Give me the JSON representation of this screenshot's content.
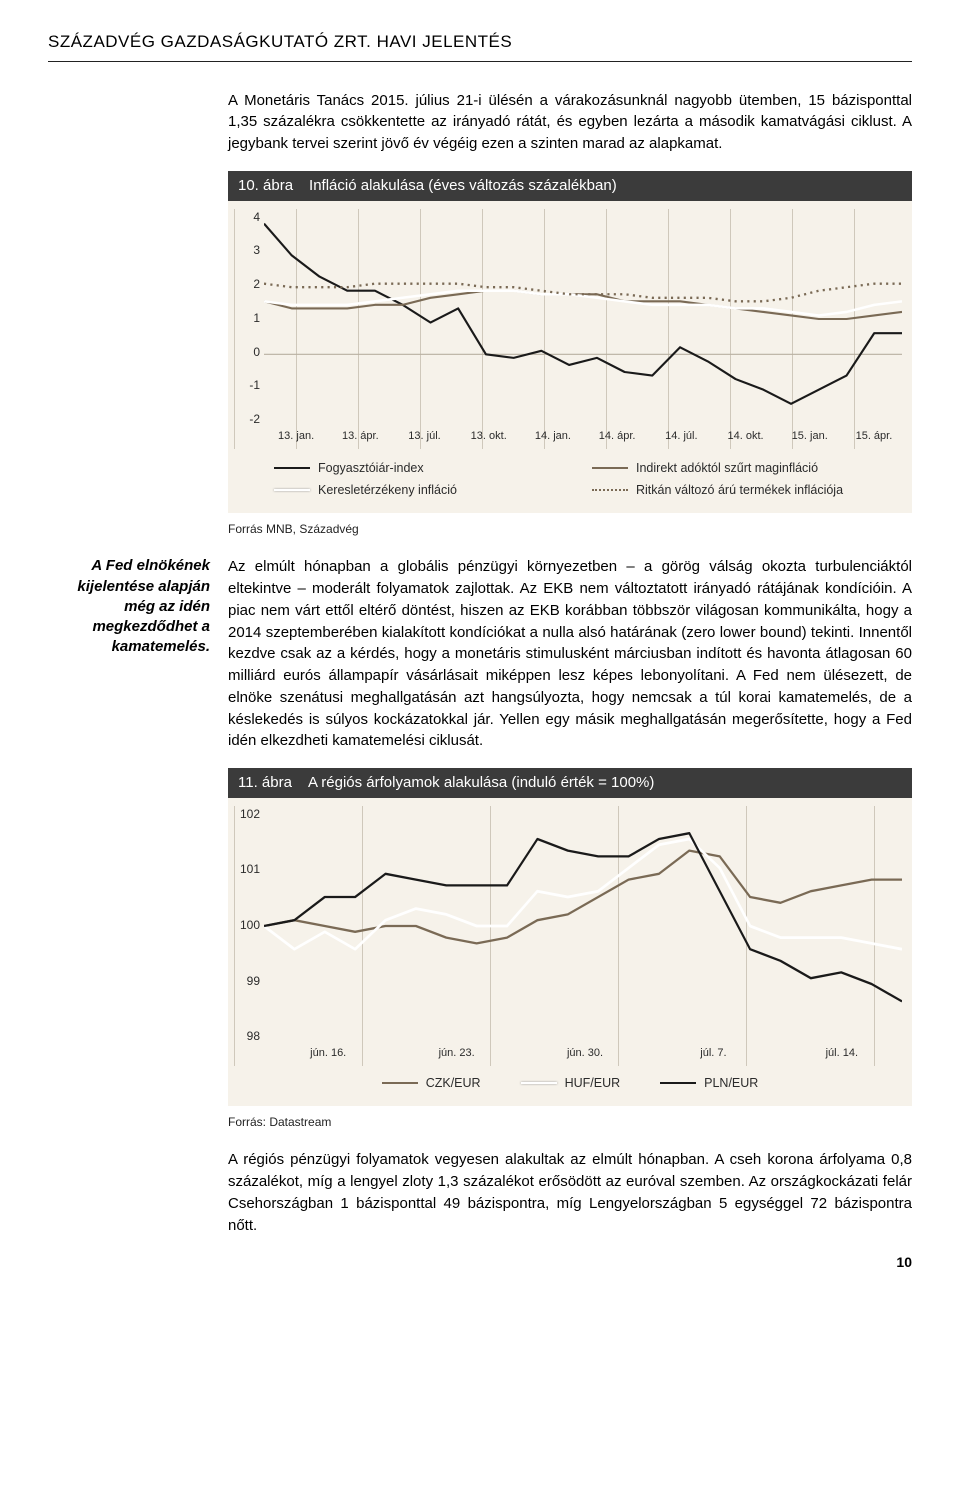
{
  "header": "SZÁZADVÉG GAZDASÁGKUTATÓ ZRT. HAVI JELENTÉS",
  "para1": "A Monetáris Tanács 2015. július 21-i ülésén a várakozásunknál nagyobb ütemben, 15 bázisponttal 1,35 százalékra csökkentette az irányadó rátát, és egyben lezárta a második kamatvágási ciklust. A jegybank tervei szerint jövő év végéig ezen a szinten marad az alapkamat.",
  "fig10": {
    "num": "10. ábra",
    "title": "Infláció alakulása (éves változás százalékban)",
    "source": "Forrás MNB, Századvég",
    "type": "line",
    "background_color": "#f6f2ea",
    "grid_color": "#cfc8bb",
    "ylim": [
      -2,
      4
    ],
    "yticks": [
      "4",
      "3",
      "2",
      "1",
      "0",
      "-1",
      "-2"
    ],
    "xticks": [
      "13. jan.",
      "13. ápr.",
      "13. júl.",
      "13. okt.",
      "14. jan.",
      "14. ápr.",
      "14. júl.",
      "14. okt.",
      "15. jan.",
      "15. ápr."
    ],
    "series": [
      {
        "name": "Fogyasztóiár-index",
        "color": "#1a1a1a",
        "style": "solid",
        "width": 2,
        "values": [
          3.7,
          2.8,
          2.2,
          1.8,
          1.8,
          1.4,
          0.9,
          1.3,
          0.0,
          -0.1,
          0.1,
          -0.3,
          -0.1,
          -0.5,
          -0.6,
          0.2,
          -0.2,
          -0.7,
          -1.0,
          -1.4,
          -1.0,
          -0.6,
          0.6,
          0.6
        ]
      },
      {
        "name": "Indirekt adóktól szűrt maginfláció",
        "color": "#7a6a55",
        "style": "solid",
        "width": 2,
        "values": [
          1.5,
          1.3,
          1.3,
          1.3,
          1.4,
          1.4,
          1.6,
          1.7,
          1.8,
          1.8,
          1.7,
          1.7,
          1.7,
          1.5,
          1.5,
          1.5,
          1.4,
          1.3,
          1.2,
          1.1,
          1.0,
          1.0,
          1.1,
          1.2
        ]
      },
      {
        "name": "Keresletérzékeny infláció",
        "color": "#ffffff",
        "style": "solid",
        "width": 2.4,
        "values": [
          1.5,
          1.4,
          1.4,
          1.4,
          1.5,
          1.6,
          1.7,
          1.8,
          1.8,
          1.8,
          1.7,
          1.7,
          1.6,
          1.5,
          1.4,
          1.4,
          1.4,
          1.3,
          1.3,
          1.2,
          1.1,
          1.2,
          1.4,
          1.5
        ]
      },
      {
        "name": "Ritkán változó árú termékek inflációja",
        "color": "#7a6a55",
        "style": "dotted",
        "width": 2.2,
        "values": [
          2.0,
          1.9,
          1.9,
          1.9,
          2.0,
          2.0,
          2.0,
          2.0,
          1.9,
          1.9,
          1.8,
          1.7,
          1.7,
          1.7,
          1.6,
          1.6,
          1.6,
          1.5,
          1.5,
          1.6,
          1.8,
          1.9,
          2.0,
          2.0
        ]
      }
    ]
  },
  "sidenote": "A Fed elnökének kijelentése alapján még az idén megkezdődhet a kamatemelés.",
  "para2": "Az elmúlt hónapban a globális pénzügyi környezetben – a görög válság okozta turbulenciáktól eltekintve – moderált folyamatok zajlottak. Az EKB nem változtatott irányadó rátájának kondícióin. A piac nem várt ettől eltérő döntést, hiszen az EKB korábban többször világosan kommunikálta, hogy a 2014 szeptemberében kialakított kondíciókat a nulla alsó határának (zero lower bound) tekinti. Innentől kezdve csak az a kérdés, hogy a monetáris stimulusként márciusban indított és havonta átlagosan 60 milliárd eurós állampapír vásárlásait miképpen lesz képes lebonyolítani. A Fed nem ülésezett, de elnöke szenátusi meghallgatásán azt hangsúlyozta, hogy nemcsak a túl korai kamatemelés, de a késlekedés is súlyos kockázatokkal jár. Yellen egy másik meghallgatásán megerősítette, hogy a Fed idén elkezdheti kamatemelési ciklusát.",
  "fig11": {
    "num": "11. ábra",
    "title": "A régiós árfolyamok alakulása (induló érték = 100%)",
    "source": "Forrás: Datastream",
    "type": "line",
    "background_color": "#f6f2ea",
    "grid_color": "#cfc8bb",
    "ylim": [
      98,
      102
    ],
    "yticks": [
      "102",
      "101",
      "100",
      "99",
      "98"
    ],
    "xticks": [
      "jún. 16.",
      "jún. 23.",
      "jún. 30.",
      "júl. 7.",
      "júl. 14."
    ],
    "series": [
      {
        "name": "CZK/EUR",
        "color": "#7a6a55",
        "style": "solid",
        "width": 2,
        "values": [
          100.0,
          100.1,
          100.0,
          99.9,
          100.0,
          100.0,
          99.8,
          99.7,
          99.8,
          100.1,
          100.2,
          100.5,
          100.8,
          100.9,
          101.3,
          101.2,
          100.5,
          100.4,
          100.6,
          100.7,
          100.8,
          100.8
        ]
      },
      {
        "name": "HUF/EUR",
        "color": "#ffffff",
        "style": "solid",
        "width": 2.4,
        "values": [
          100.0,
          99.6,
          99.9,
          99.6,
          100.1,
          100.3,
          100.2,
          100.0,
          100.0,
          100.6,
          100.5,
          100.6,
          101.0,
          101.4,
          101.5,
          101.0,
          100.0,
          99.8,
          99.8,
          99.8,
          99.7,
          99.6
        ]
      },
      {
        "name": "PLN/EUR",
        "color": "#1a1a1a",
        "style": "solid",
        "width": 2,
        "values": [
          100.0,
          100.1,
          100.5,
          100.5,
          100.9,
          100.8,
          100.7,
          100.7,
          100.7,
          101.5,
          101.3,
          101.2,
          101.2,
          101.5,
          101.6,
          100.6,
          99.6,
          99.4,
          99.1,
          99.2,
          99.0,
          98.7
        ]
      }
    ]
  },
  "para3": "A régiós pénzügyi folyamatok vegyesen alakultak az elmúlt hónapban. A cseh korona árfolyama 0,8 százalékot, míg a lengyel zloty 1,3 százalékot erősödött az euróval szemben. Az országkockázati felár Csehországban 1 bázisponttal 49 bázispontra, míg Lengyelországban 5 egységgel 72 bázispontra nőtt.",
  "page_number": "10"
}
